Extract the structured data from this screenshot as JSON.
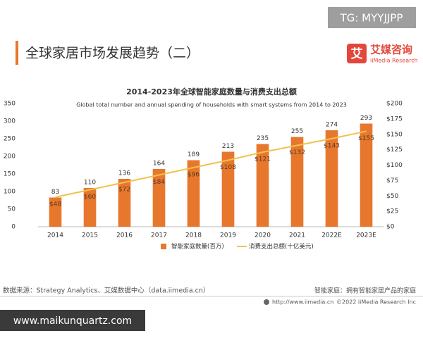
{
  "header": {
    "title": "全球家居市场发展趋势（二）",
    "logo_name": "艾媒咨询",
    "logo_icon": "艾",
    "logo_sub": "iiMedia Research",
    "watermark": "TG: MYYJJPP"
  },
  "chart_data": {
    "type": "bar-line",
    "title": "2014-2023年全球智能家庭数量与消费支出总额",
    "subtitle": "Global total number and  annual spending of households with smart systems from 2014 to 2023",
    "categories": [
      "2014",
      "2015",
      "2016",
      "2017",
      "2018",
      "2019",
      "2020",
      "2021",
      "2022E",
      "2023E"
    ],
    "series": [
      {
        "name": "智能家庭数量(百万)",
        "color": "#e8772e",
        "values": [
          83,
          110,
          136,
          164,
          189,
          213,
          235,
          255,
          274,
          293
        ]
      },
      {
        "name": "消费支出总额(十亿美元)",
        "color": "#f2c14e",
        "axis": "y2",
        "values": [
          48,
          60,
          72,
          84,
          96,
          108,
          121,
          132,
          143,
          155
        ],
        "value_labels": [
          "$48",
          "$60",
          "$72",
          "$84",
          "$96",
          "$108",
          "$121",
          "$132",
          "$143",
          "$155"
        ]
      }
    ],
    "ylim": [
      0,
      350
    ],
    "yticks": [
      0,
      50,
      100,
      150,
      200,
      250,
      300,
      350
    ],
    "y2lim": [
      0,
      200
    ],
    "y2ticks": [
      {
        "value": 0,
        "label": "$0"
      },
      {
        "value": 25,
        "label": "$25"
      },
      {
        "value": 50,
        "label": "$50"
      },
      {
        "value": 75,
        "label": "$75"
      },
      {
        "value": 100,
        "label": "$100"
      },
      {
        "value": 125,
        "label": "$125"
      },
      {
        "value": 150,
        "label": "$150"
      },
      {
        "value": 175,
        "label": "$175"
      },
      {
        "value": 200,
        "label": "$200"
      }
    ],
    "grid": false
  },
  "footer": {
    "source": "数据来源：Strategy Analytics、艾媒数据中心（data.iimedia.cn）",
    "note": "智能家庭：拥有智能家居产品的家庭",
    "url": "http://www.iimedia.cn",
    "copyright": "©2022  iiMedia Research  Inc",
    "watermark": "www.maikunquartz.com"
  }
}
